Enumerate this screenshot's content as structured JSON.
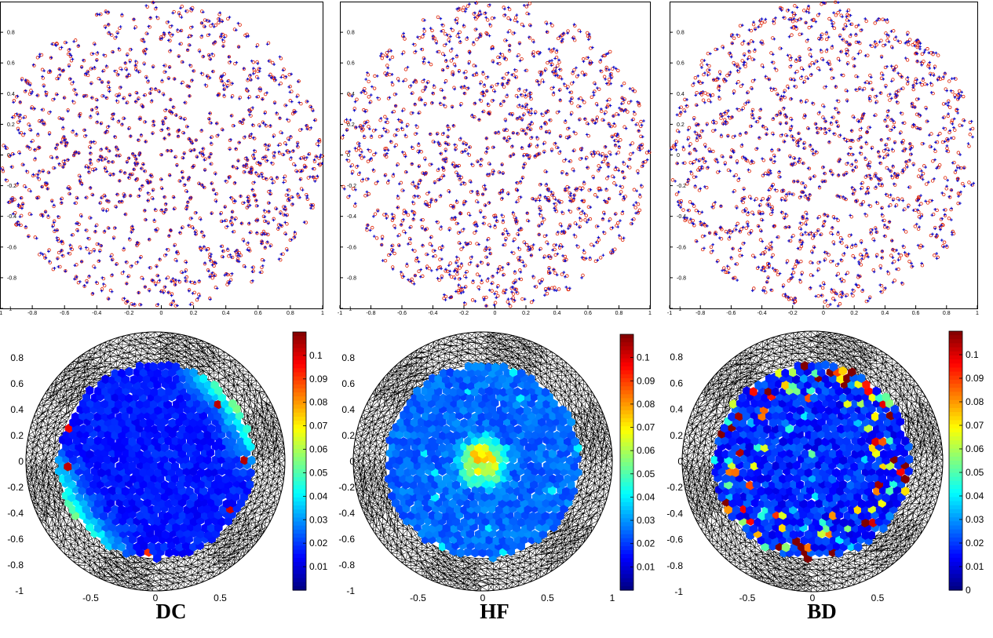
{
  "chart_data": [
    {
      "type": "scatter",
      "panel": "DC",
      "row": "point-positions",
      "description_of_marks": "blue '+' markers with red 'o' markers, points uniformly distributed in unit disk",
      "xlim": [
        -1,
        1
      ],
      "ylim": [
        -1,
        1
      ],
      "xticks": [
        "-1",
        "-0.8",
        "-0.6",
        "-0.4",
        "-0.2",
        "0",
        "0.2",
        "0.4",
        "0.6",
        "0.8",
        "1"
      ],
      "yticks": [
        "-1",
        "-0.8",
        "-0.6",
        "-0.4",
        "-0.2",
        "0",
        "0.2",
        "0.4",
        "0.6",
        "0.8"
      ],
      "approx_point_count": 1000,
      "seed": 11,
      "offset_scale": 0.008
    },
    {
      "type": "scatter",
      "panel": "HF",
      "row": "point-positions",
      "xlim": [
        -1,
        1
      ],
      "ylim": [
        -1,
        1
      ],
      "xticks": [
        "-1",
        "-0.8",
        "-0.6",
        "-0.4",
        "-0.2",
        "0",
        "0.2",
        "0.4",
        "0.6",
        "0.8",
        "1"
      ],
      "yticks": [
        "-1",
        "-0.8",
        "-0.6",
        "-0.4",
        "-0.2",
        "0",
        "0.2",
        "0.4",
        "0.6",
        "0.8"
      ],
      "approx_point_count": 1000,
      "seed": 23,
      "offset_scale": 0.012
    },
    {
      "type": "scatter",
      "panel": "BD",
      "row": "point-positions",
      "xlim": [
        -1,
        1
      ],
      "ylim": [
        -1,
        1
      ],
      "xticks": [
        "-1",
        "-0.8",
        "-0.6",
        "-0.4",
        "-0.2",
        "0",
        "0.2",
        "0.4",
        "0.6",
        "0.8",
        "1"
      ],
      "yticks": [
        "-1",
        "-0.8",
        "-0.6",
        "-0.4",
        "-0.2",
        "0",
        "0.2",
        "0.4",
        "0.6",
        "0.8"
      ],
      "approx_point_count": 1000,
      "seed": 37,
      "offset_scale": 0.012
    },
    {
      "type": "heatmap",
      "panel": "DC",
      "row": "error-maps",
      "xlim": [
        -1,
        1
      ],
      "ylim": [
        -1,
        1
      ],
      "xticks": [
        "-0.5",
        "0",
        "0.5"
      ],
      "yticks": [
        "-1",
        "-0.8",
        "-0.6",
        "-0.4",
        "-0.2",
        "0",
        "0.2",
        "0.4",
        "0.6",
        "0.8"
      ],
      "colorbar_range": [
        0,
        0.11
      ],
      "colorbar_ticks": [
        "0.01",
        "0.02",
        "0.03",
        "0.04",
        "0.05",
        "0.06",
        "0.07",
        "0.08",
        "0.09",
        "0.1"
      ],
      "colormap": "jet",
      "inner_radius": 0.75,
      "error_pattern": "boundary-lobes",
      "seed": 5
    },
    {
      "type": "heatmap",
      "panel": "HF",
      "row": "error-maps",
      "xlim": [
        -1,
        1
      ],
      "ylim": [
        -1,
        1
      ],
      "xticks": [
        "-0.5",
        "0",
        "0.5",
        "1"
      ],
      "yticks": [
        "-1",
        "-0.8",
        "-0.6",
        "-0.4",
        "-0.2",
        "0",
        "0.2",
        "0.4",
        "0.6",
        "0.8"
      ],
      "colorbar_range": [
        0,
        0.11
      ],
      "colorbar_ticks": [
        "0.01",
        "0.02",
        "0.03",
        "0.04",
        "0.05",
        "0.06",
        "0.07",
        "0.08",
        "0.09",
        "0.1"
      ],
      "colormap": "jet",
      "inner_radius": 0.75,
      "error_pattern": "center-peak",
      "seed": 9
    },
    {
      "type": "heatmap",
      "panel": "BD",
      "row": "error-maps",
      "xlim": [
        -1,
        1
      ],
      "ylim": [
        -1,
        1
      ],
      "xticks": [
        "-0.5",
        "0",
        "0.5"
      ],
      "yticks": [
        "-1",
        "-0.8",
        "-0.6",
        "-0.4",
        "-0.2",
        "0",
        "0.2",
        "0.4",
        "0.6",
        "0.8"
      ],
      "colorbar_range": [
        0,
        0.11
      ],
      "colorbar_ticks": [
        "0",
        "0.01",
        "0.02",
        "0.03",
        "0.04",
        "0.05",
        "0.06",
        "0.07",
        "0.08",
        "0.09",
        "0.1"
      ],
      "colormap": "jet",
      "inner_radius": 0.75,
      "error_pattern": "noisy-ring",
      "seed": 13
    }
  ],
  "labels": {
    "dc": "DC",
    "hf": "HF",
    "bd": "BD"
  },
  "colors": {
    "plus_marker": "#1010cc",
    "circle_marker": "#e02000",
    "mesh": "#000000",
    "axis": "#000000"
  }
}
